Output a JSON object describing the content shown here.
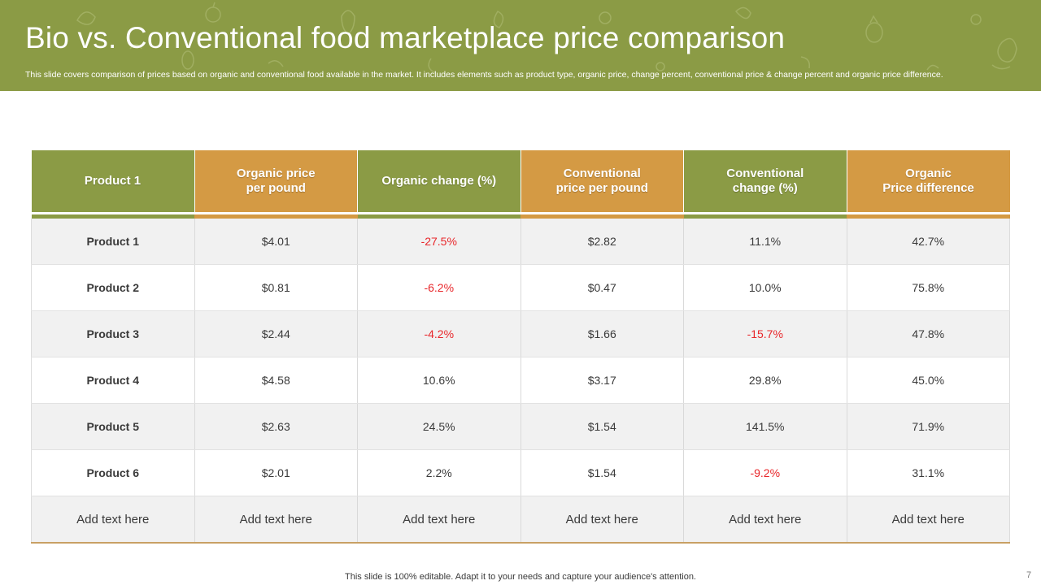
{
  "header": {
    "title": "Bio vs. Conventional food marketplace price comparison",
    "subtitle": "This slide covers comparison of prices based on organic and conventional food available in the market. It includes elements such as product type, organic price, change percent, conventional price & change percent and organic price difference."
  },
  "table": {
    "headers": [
      {
        "lines": [
          "Product 1"
        ],
        "color": "green"
      },
      {
        "lines": [
          "Organic price",
          "per pound"
        ],
        "color": "orange"
      },
      {
        "lines": [
          "Organic change (%)"
        ],
        "color": "green"
      },
      {
        "lines": [
          "Conventional",
          "price per pound"
        ],
        "color": "orange"
      },
      {
        "lines": [
          "Conventional",
          "change (%)"
        ],
        "color": "green"
      },
      {
        "lines": [
          "Organic",
          "Price difference"
        ],
        "color": "orange"
      }
    ],
    "rows": [
      [
        "Product 1",
        "$4.01",
        "-27.5%",
        "$2.82",
        "11.1%",
        "42.7%"
      ],
      [
        "Product 2",
        "$0.81",
        "-6.2%",
        "$0.47",
        "10.0%",
        "75.8%"
      ],
      [
        "Product 3",
        "$2.44",
        "-4.2%",
        "$1.66",
        "-15.7%",
        "47.8%"
      ],
      [
        "Product 4",
        "$4.58",
        "10.6%",
        "$3.17",
        "29.8%",
        "45.0%"
      ],
      [
        "Product 5",
        "$2.63",
        "24.5%",
        "$1.54",
        "141.5%",
        "71.9%"
      ],
      [
        "Product 6",
        "$2.01",
        "2.2%",
        "$1.54",
        "-9.2%",
        "31.1%"
      ]
    ],
    "placeholder_row": [
      "Add text here",
      "Add text here",
      "Add text here",
      "Add text here",
      "Add text here",
      "Add text here"
    ]
  },
  "footer": {
    "note": "This slide is 100% editable. Adapt it to your needs and capture your audience's attention.",
    "page_number": "7"
  },
  "colors": {
    "green": "#8b9b45",
    "orange": "#d49a44",
    "negative": "#e8262a"
  }
}
